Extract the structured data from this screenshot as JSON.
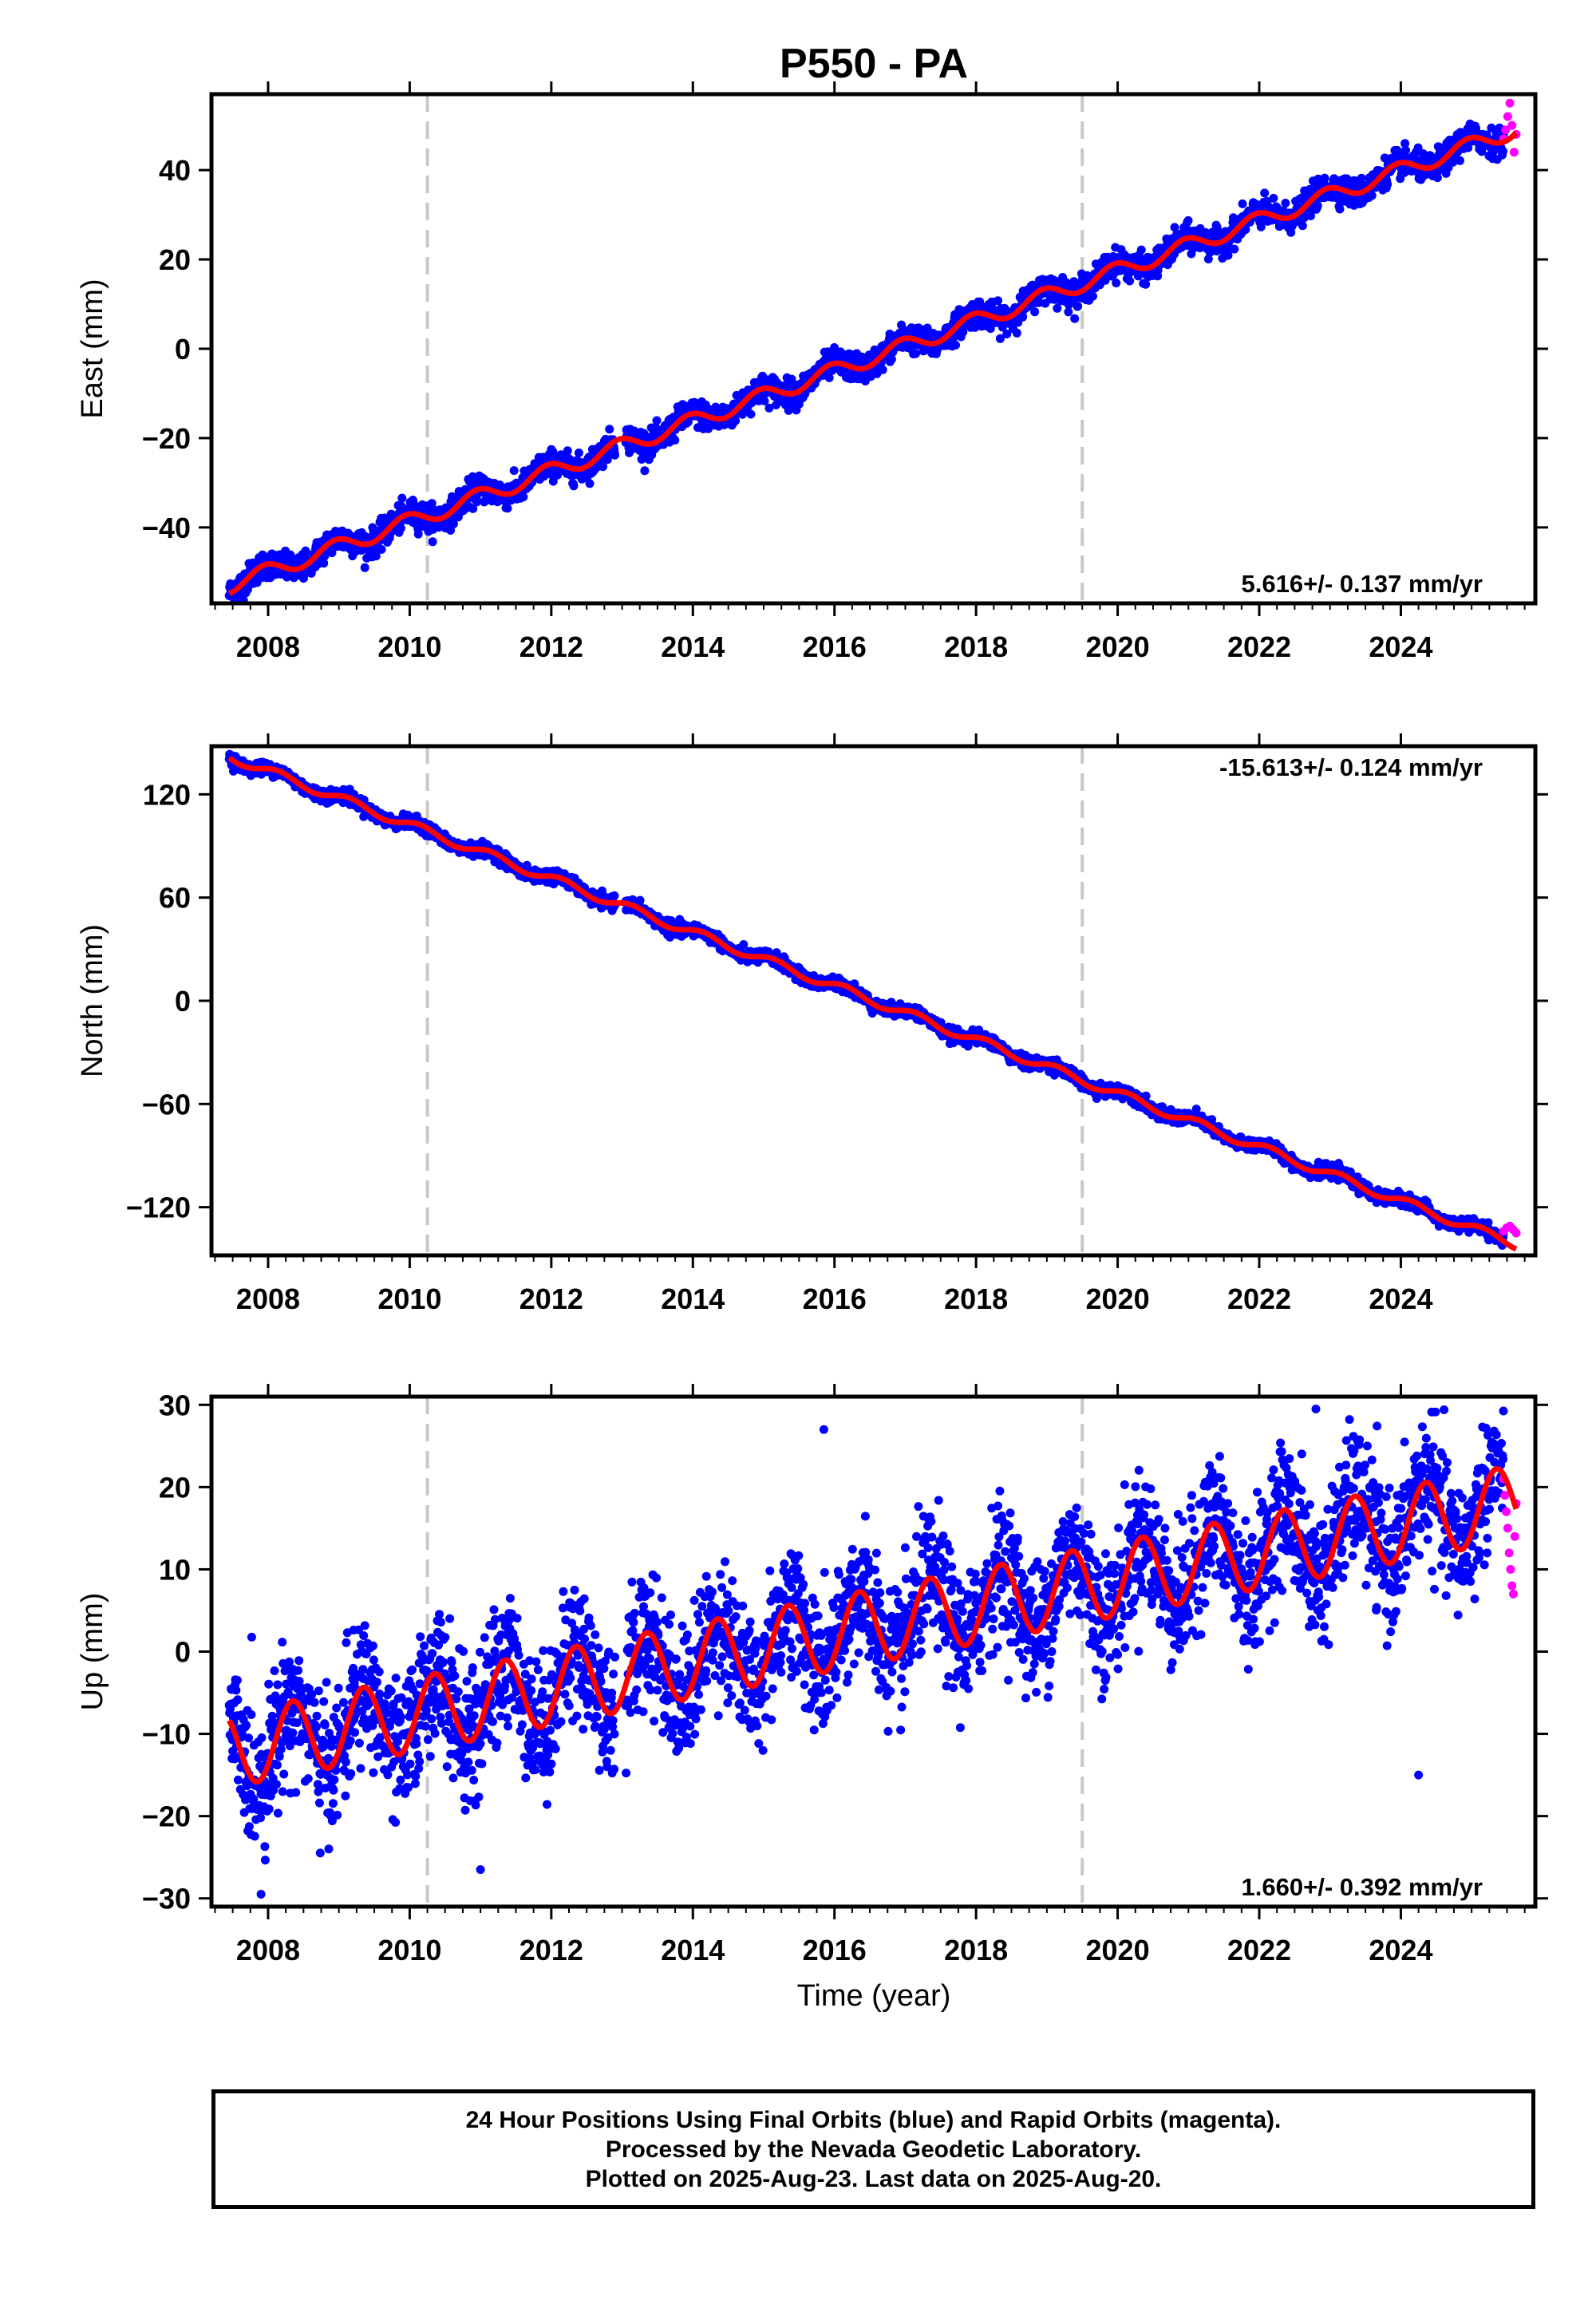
{
  "title": "P550 - PA",
  "xlabel": "Time (year)",
  "colors": {
    "final_orbits": "#0000ff",
    "rapid_orbits": "#ff00ff",
    "model_fit": "#ff0000",
    "event_lines": "#c8c8c8",
    "frame": "#000000"
  },
  "footer": {
    "line1": "24 Hour Positions Using Final Orbits (blue) and Rapid Orbits (magenta).",
    "line2": "Processed by the Nevada Geodetic Laboratory.",
    "line3": "Plotted on 2025-Aug-23. Last data on 2025-Aug-20."
  },
  "chart_data": [
    {
      "type": "scatter",
      "component": "East",
      "ylabel": "East (mm)",
      "xlim": [
        2007.2,
        2025.9
      ],
      "ylim": [
        -57,
        57
      ],
      "xticks": [
        2008,
        2010,
        2012,
        2014,
        2016,
        2018,
        2020,
        2022,
        2024
      ],
      "yticks": [
        -40,
        -20,
        0,
        20,
        40
      ],
      "yticklabels": [
        "−40",
        "−20",
        "0",
        "20",
        "40"
      ],
      "grid": false,
      "event_lines_x": [
        2010.25,
        2019.5
      ],
      "rate_label": "5.616+/- 0.137 mm/yr",
      "rate_position": "bottom-right",
      "series": [
        {
          "name": "Final Orbits",
          "color": "#0000ff",
          "x_start": 2007.45,
          "x_end": 2025.45,
          "start_value": -53,
          "rate": 5.616,
          "annual_amplitude": 1.8,
          "annual_phase": 0.3,
          "scatter": 1.5
        },
        {
          "name": "Rapid Orbits",
          "color": "#ff00ff",
          "x_start": 2025.45,
          "x_end": 2025.63,
          "values": [
            47,
            49,
            52,
            55,
            50,
            44,
            48
          ]
        }
      ],
      "model_fit": {
        "color": "#ff0000",
        "rate": 5.616
      }
    },
    {
      "type": "scatter",
      "component": "North",
      "ylabel": "North (mm)",
      "xlim": [
        2007.2,
        2025.9
      ],
      "ylim": [
        -148,
        148
      ],
      "xticks": [
        2008,
        2010,
        2012,
        2014,
        2016,
        2018,
        2020,
        2022,
        2024
      ],
      "yticks": [
        -120,
        -60,
        0,
        60,
        120
      ],
      "yticklabels": [
        "−120",
        "−60",
        "0",
        "60",
        "120"
      ],
      "grid": false,
      "event_lines_x": [
        2010.25,
        2019.5
      ],
      "rate_label": "-15.613+/- 0.124 mm/yr",
      "rate_position": "top-right",
      "series": [
        {
          "name": "Final Orbits",
          "color": "#0000ff",
          "x_start": 2007.45,
          "x_end": 2025.45,
          "start_value": 142,
          "rate": -15.613,
          "annual_amplitude": 2.5,
          "annual_phase": 0.1,
          "scatter": 1.8
        },
        {
          "name": "Rapid Orbits",
          "color": "#ff00ff",
          "x_start": 2025.45,
          "x_end": 2025.63,
          "values": [
            -134,
            -132,
            -131,
            -133,
            -135
          ]
        }
      ],
      "model_fit": {
        "color": "#ff0000",
        "rate": -15.613
      }
    },
    {
      "type": "scatter",
      "component": "Up",
      "ylabel": "Up (mm)",
      "xlim": [
        2007.2,
        2025.9
      ],
      "ylim": [
        -31,
        31
      ],
      "xticks": [
        2008,
        2010,
        2012,
        2014,
        2016,
        2018,
        2020,
        2022,
        2024
      ],
      "yticks": [
        -30,
        -20,
        -10,
        0,
        10,
        20,
        30
      ],
      "yticklabels": [
        "−30",
        "−20",
        "−10",
        "0",
        "10",
        "20",
        "30"
      ],
      "grid": false,
      "event_lines_x": [
        2010.25,
        2019.5
      ],
      "rate_label": "1.660+/- 0.392 mm/yr",
      "rate_position": "bottom-right",
      "series": [
        {
          "name": "Final Orbits",
          "color": "#0000ff",
          "x_start": 2007.45,
          "x_end": 2025.45,
          "start_value": -12,
          "rate": 1.66,
          "annual_amplitude": 4.5,
          "annual_phase": 0.9,
          "scatter": 4.0,
          "outliers": [
            [
              2015.85,
              27
            ],
            [
              2022.8,
              29.5
            ],
            [
              2007.9,
              -29.5
            ],
            [
              2011.0,
              -26.5
            ],
            [
              2024.25,
              -15
            ]
          ]
        },
        {
          "name": "Rapid Orbits",
          "color": "#ff00ff",
          "x_start": 2025.45,
          "x_end": 2025.63,
          "values": [
            21,
            19,
            17,
            15,
            12,
            10,
            8,
            7,
            14,
            18
          ]
        }
      ],
      "model_fit": {
        "color": "#ff0000",
        "rate": 1.66
      }
    }
  ]
}
